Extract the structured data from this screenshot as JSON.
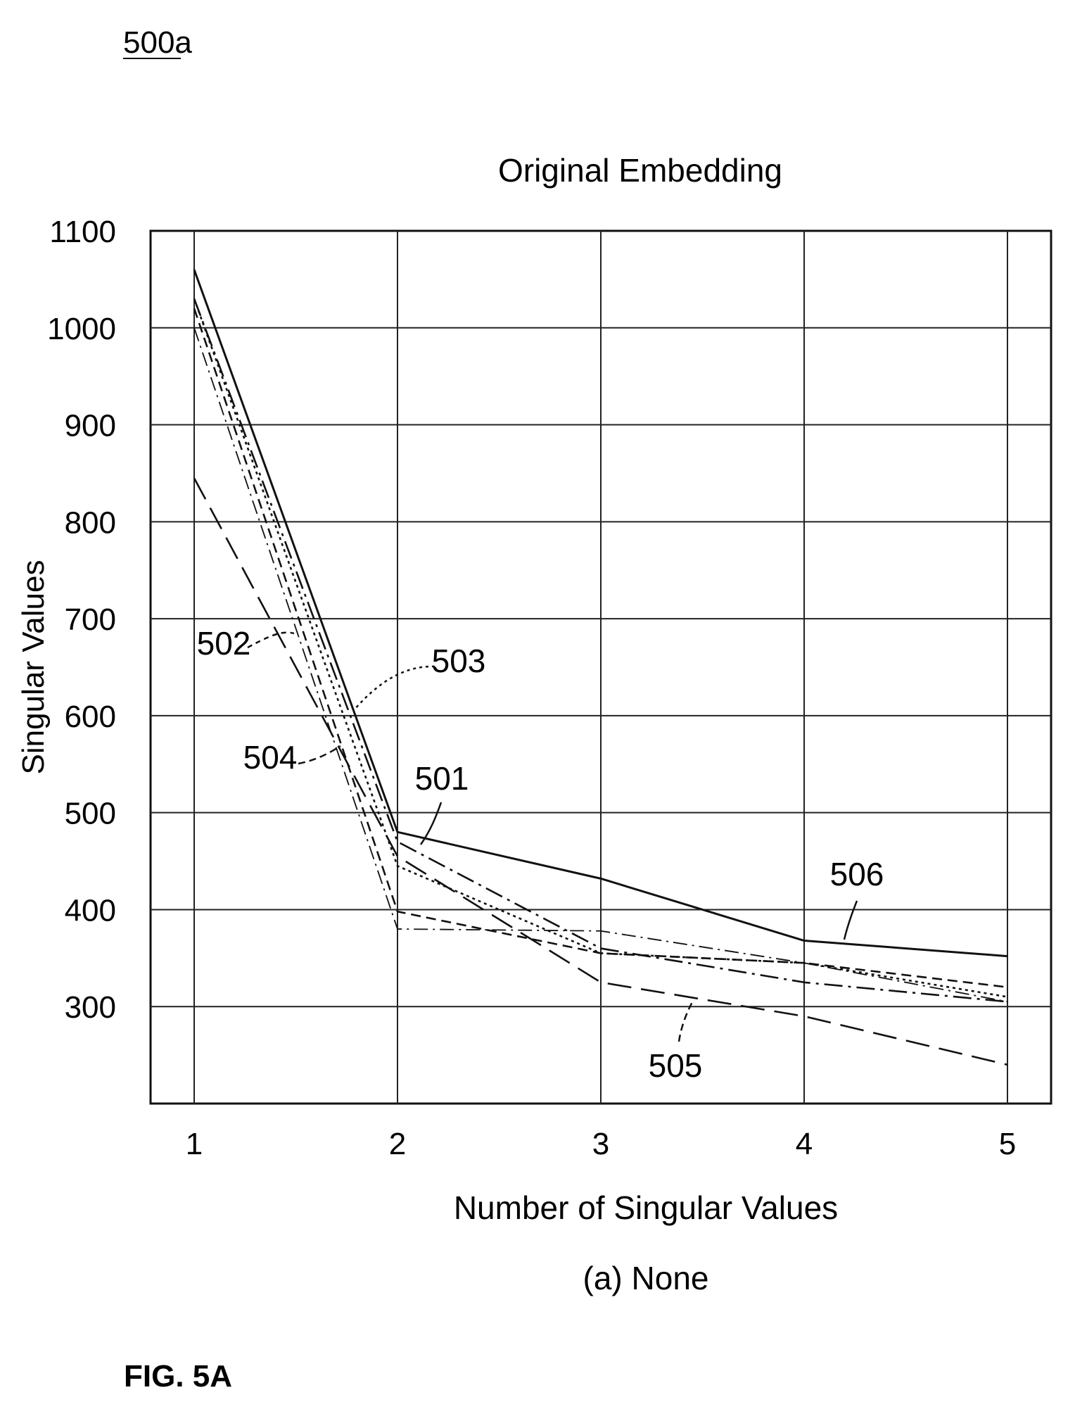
{
  "figure_ref": "500a",
  "figure_caption": "FIG. 5A",
  "subcaption": "(a) None",
  "chart_data": {
    "type": "line",
    "title": "Original Embedding",
    "xlabel": "Number of Singular Values",
    "ylabel": "Singular Values",
    "x": [
      1,
      2,
      3,
      4,
      5
    ],
    "xticks": [
      "1",
      "2",
      "3",
      "4",
      "5"
    ],
    "yticks": [
      "300",
      "400",
      "500",
      "600",
      "700",
      "800",
      "900",
      "1000",
      "1100"
    ],
    "xlim": [
      0.8,
      5.2
    ],
    "ylim": [
      200,
      1100
    ],
    "grid": true,
    "series": [
      {
        "name": "501",
        "style": "dashdot",
        "values": [
          1030,
          470,
          360,
          325,
          305
        ]
      },
      {
        "name": "502",
        "style": "dashdot-thin",
        "values": [
          1000,
          380,
          378,
          345,
          305
        ]
      },
      {
        "name": "503",
        "style": "dotted",
        "values": [
          1030,
          445,
          355,
          345,
          310
        ]
      },
      {
        "name": "504",
        "style": "dashed-short",
        "values": [
          1020,
          398,
          355,
          345,
          320
        ]
      },
      {
        "name": "505",
        "style": "dashed-long",
        "values": [
          845,
          455,
          325,
          290,
          240
        ]
      },
      {
        "name": "506",
        "style": "solid",
        "values": [
          1060,
          480,
          432,
          368,
          352
        ]
      }
    ],
    "annotations": [
      {
        "text": "501",
        "series": "501"
      },
      {
        "text": "502",
        "series": "502"
      },
      {
        "text": "503",
        "series": "503"
      },
      {
        "text": "504",
        "series": "504"
      },
      {
        "text": "505",
        "series": "505"
      },
      {
        "text": "506",
        "series": "506"
      }
    ]
  }
}
